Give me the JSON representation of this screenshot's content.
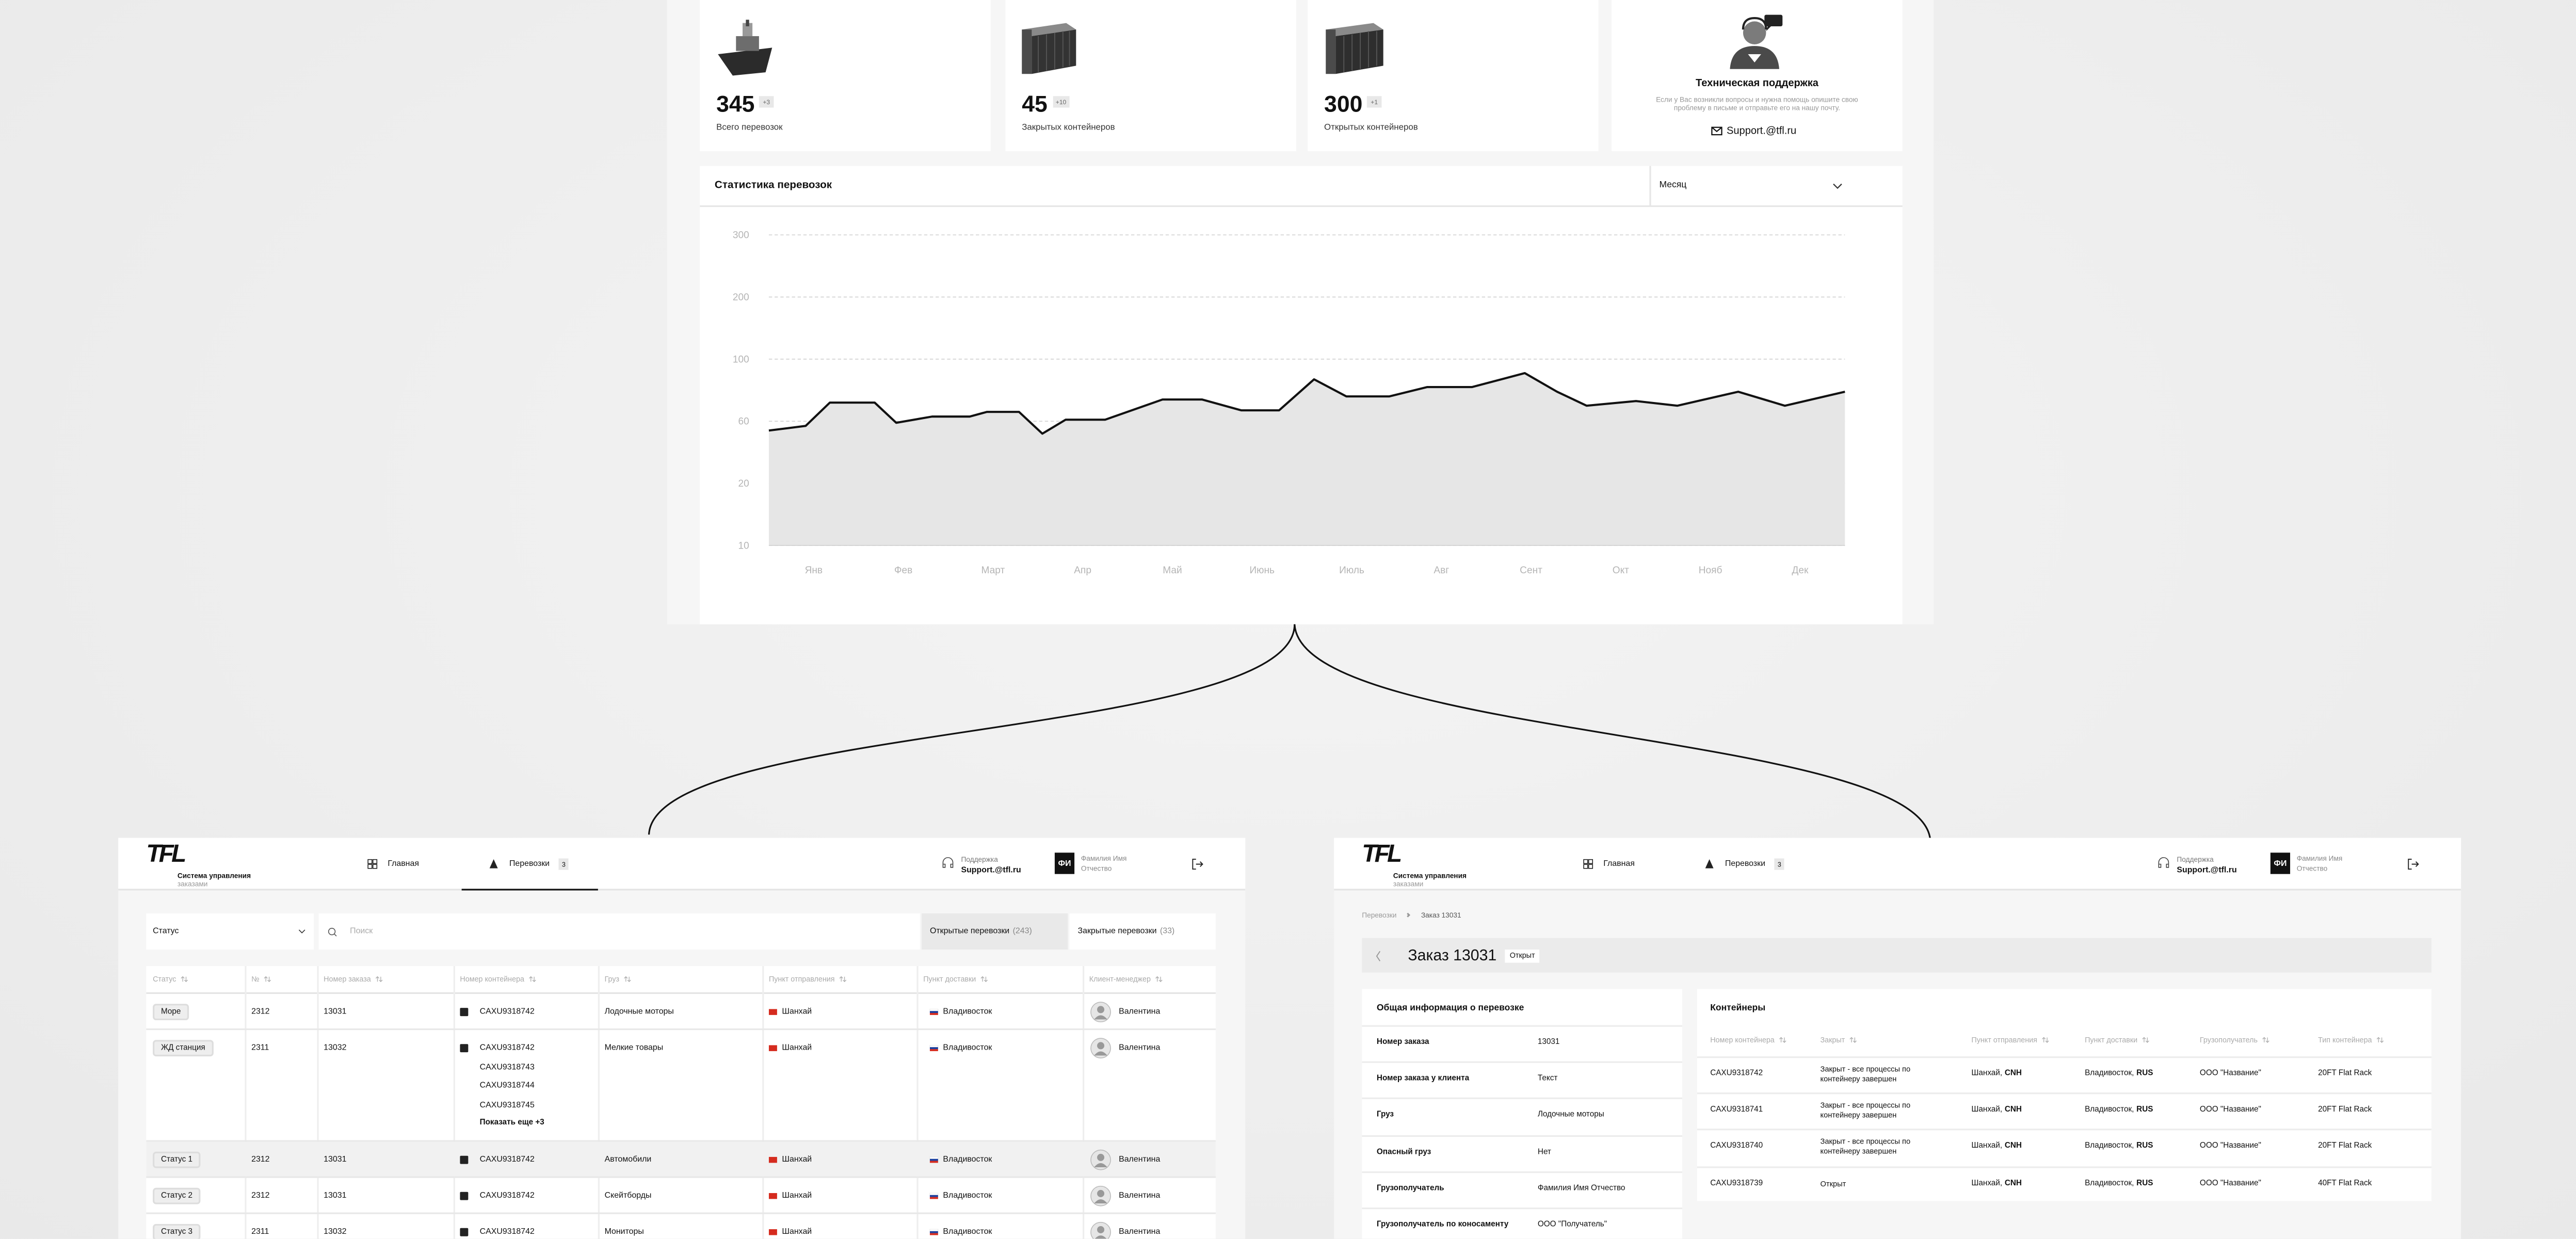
{
  "cards": [
    {
      "value": 345,
      "delta": "+3",
      "label": "Всего перевозок"
    },
    {
      "value": 45,
      "delta": "+10",
      "label": "Закрытых контейнеров"
    },
    {
      "value": 300,
      "delta": "+1",
      "label": "Открытых контейнеров"
    }
  ],
  "support": {
    "title": "Техническая поддержка",
    "text": "Если у Вас возникли вопросы и нужна помощь опишите свою проблему в письме и отправьте его на нашу почту.",
    "email": "Support.@tfl.ru"
  },
  "chart_data": {
    "type": "line",
    "title": "Статистика перевозок",
    "period": "Месяц",
    "color": "#111111",
    "area_color": "#e6e6e6",
    "grid": true,
    "x": [
      0.5,
      0.91,
      1.18,
      1.68,
      1.92,
      2.32,
      2.74,
      2.93,
      3.29,
      3.55,
      3.81,
      4.25,
      4.89,
      5.33,
      5.77,
      6.19,
      6.58,
      6.94,
      7.42,
      7.84,
      8.34,
      8.93,
      9.29,
      9.62,
      10.17,
      10.63,
      11.31,
      11.83,
      12.5
    ],
    "values": [
      54,
      57,
      72,
      72,
      59,
      63,
      63,
      66,
      66,
      52,
      61,
      61,
      74,
      74,
      67,
      67,
      87,
      76,
      76,
      82,
      82,
      91,
      79,
      70,
      73,
      70,
      79,
      70,
      79
    ],
    "xlim": [
      0.5,
      12.5
    ],
    "xticks": [
      {
        "value": 1,
        "label": "Янв"
      },
      {
        "value": 2,
        "label": "Фев"
      },
      {
        "value": 3,
        "label": "Март"
      },
      {
        "value": 4,
        "label": "Апр"
      },
      {
        "value": 5,
        "label": "Май"
      },
      {
        "value": 6,
        "label": "Июнь"
      },
      {
        "value": 7,
        "label": "Июль"
      },
      {
        "value": 8,
        "label": "Авг"
      },
      {
        "value": 9,
        "label": "Сент"
      },
      {
        "value": 10,
        "label": "Окт"
      },
      {
        "value": 11,
        "label": "Нояб"
      },
      {
        "value": 12,
        "label": "Дек"
      }
    ],
    "ylim": [
      10,
      300
    ],
    "yticks": [
      300,
      200,
      100,
      60,
      20,
      10
    ]
  },
  "header": {
    "logo": "TFL",
    "subtitle": "Система управления",
    "subtitle2": "заказами",
    "nav": [
      {
        "label": "Главная"
      },
      {
        "label": "Перевозки",
        "badge": "3"
      }
    ],
    "support_label": "Поддержка",
    "support_email": "Support.@tfl.ru",
    "avatar": "ФИ",
    "user_name": "Фамилия Имя Отчество"
  },
  "list": {
    "status_filter": "Статус",
    "search": "Поиск",
    "tabs": [
      {
        "label": "Открытые перевозки",
        "count": "(243)"
      },
      {
        "label": "Закрытые перевозки",
        "count": "(33)"
      }
    ],
    "columns": [
      "Статус",
      "№",
      "Номер заказа",
      "Номер контейнера",
      "Груз",
      "Пункт отправления",
      "Пункт доставки",
      "Клиент-менеджер"
    ],
    "rows": [
      {
        "status": "Море",
        "num": "2312",
        "order": "13031",
        "containers": [
          "CAXU9318742"
        ],
        "cargo": "Лодочные моторы",
        "from": "Шанхай",
        "to": "Владивосток",
        "manager": "Валентина"
      },
      {
        "status": "ЖД станция",
        "num": "2311",
        "order": "13032",
        "containers": [
          "CAXU9318742",
          "CAXU9318743",
          "CAXU9318744",
          "CAXU9318745"
        ],
        "more": "Показать еще +3",
        "cargo": "Мелкие товары",
        "from": "Шанхай",
        "to": "Владивосток",
        "manager": "Валентина"
      },
      {
        "status": "Статус 1",
        "num": "2312",
        "order": "13031",
        "containers": [
          "CAXU9318742"
        ],
        "cargo": "Автомобили",
        "from": "Шанхай",
        "to": "Владивосток",
        "manager": "Валентина"
      },
      {
        "status": "Статус 2",
        "num": "2312",
        "order": "13031",
        "containers": [
          "CAXU9318742"
        ],
        "cargo": "Скейтборды",
        "from": "Шанхай",
        "to": "Владивосток",
        "manager": "Валентина"
      },
      {
        "status": "Статус 3",
        "num": "2311",
        "order": "13032",
        "containers": [
          "CAXU9318742"
        ],
        "cargo": "Мониторы",
        "from": "Шанхай",
        "to": "Владивосток",
        "manager": "Валентина"
      }
    ]
  },
  "order": {
    "breadcrumb": [
      "Перевозки",
      "Заказ 13031"
    ],
    "title": "Заказ 13031",
    "status": "Открыт",
    "info_title": "Общая информация о перевозке",
    "info": [
      [
        "Номер заказа",
        "13031"
      ],
      [
        "Номер заказа у клиента",
        "Текст"
      ],
      [
        "Груз",
        "Лодочные моторы"
      ],
      [
        "Опасный груз",
        "Нет"
      ],
      [
        "Грузополучатель",
        "Фамилия Имя Отчество"
      ],
      [
        "Грузополучатель по коносаменту",
        "ООО \"Получатель\""
      ]
    ],
    "containers_title": "Контейнеры",
    "columns": [
      "Номер контейнера",
      "Закрыт",
      "Пункт отправления",
      "Пункт доставки",
      "Грузополучатель",
      "Тип контейнера"
    ],
    "rows": [
      {
        "number": "CAXU9318742",
        "closed": "Закрыт - все процессы по контейнеру завершен",
        "from_city": "Шанхай,",
        "from_code": "CNH",
        "to_city": "Владивосток,",
        "to_code": "RUS",
        "consignee": "ООО \"Название\"",
        "type": "20FT Flat Rack"
      },
      {
        "number": "CAXU9318741",
        "closed": "Закрыт - все процессы по контейнеру завершен",
        "from_city": "Шанхай,",
        "from_code": "CNH",
        "to_city": "Владивосток,",
        "to_code": "RUS",
        "consignee": "ООО \"Название\"",
        "type": "20FT Flat Rack"
      },
      {
        "number": "CAXU9318740",
        "closed": "Закрыт - все процессы по контейнеру завершен",
        "from_city": "Шанхай,",
        "from_code": "CNH",
        "to_city": "Владивосток,",
        "to_code": "RUS",
        "consignee": "ООО \"Название\"",
        "type": "20FT Flat Rack"
      },
      {
        "number": "CAXU9318739",
        "closed": "Открыт",
        "from_city": "Шанхай,",
        "from_code": "CNH",
        "to_city": "Владивосток,",
        "to_code": "RUS",
        "consignee": "ООО \"Название\"",
        "type": "40FT Flat Rack"
      }
    ]
  }
}
